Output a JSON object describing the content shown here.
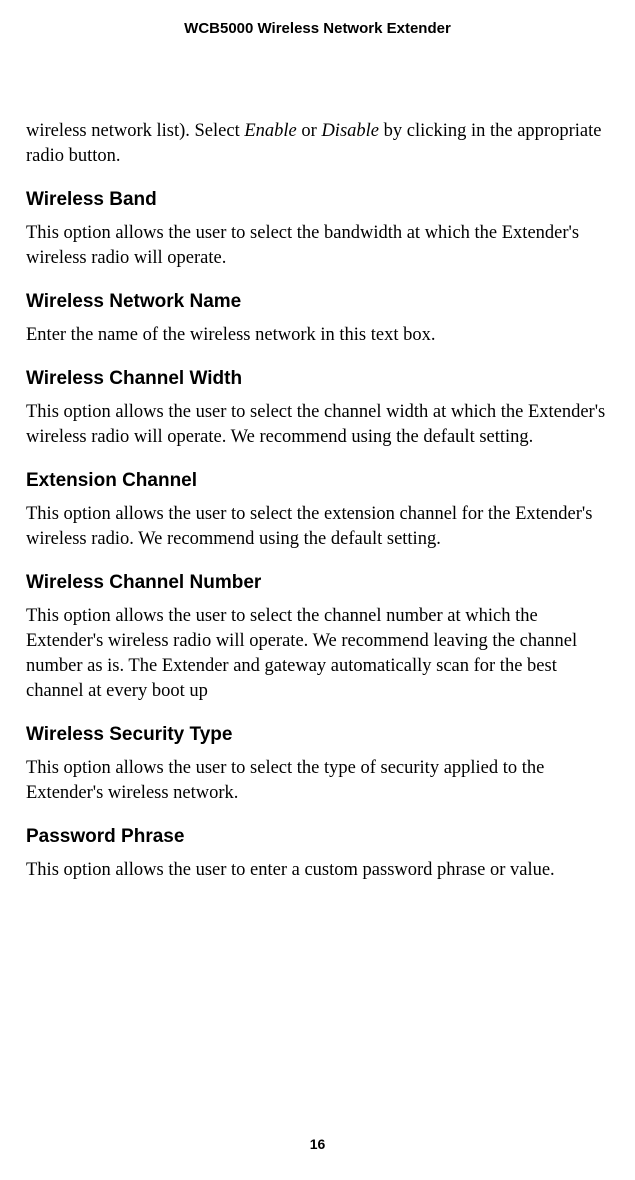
{
  "header": {
    "title": "WCB5000 Wireless Network Extender"
  },
  "intro": {
    "prefix": "wireless network list). Select ",
    "italic1": "Enable",
    "mid": " or ",
    "italic2": "Disable",
    "suffix": " by clicking in the appropriate radio button."
  },
  "sections": [
    {
      "heading": "Wireless Band",
      "body": "This option allows the user to select the bandwidth at which the Extender's wireless radio will operate."
    },
    {
      "heading": "Wireless Network Name",
      "body": "Enter the name of the wireless network in this text box."
    },
    {
      "heading": "Wireless Channel Width",
      "body": "This option allows the user to select the channel width at which the Extender's wireless radio will operate. We recommend using the default setting."
    },
    {
      "heading": "Extension Channel",
      "body": "This option allows the user to select the extension channel for the Extender's wireless radio. We recommend using the default setting."
    },
    {
      "heading": "Wireless Channel Number",
      "body": "This option allows the user to select the channel number at which the Extender's wireless radio will operate. We recommend leaving the channel number as is. The Extender and gateway automatically scan for the best channel at every boot up"
    },
    {
      "heading": "Wireless Security Type",
      "body": "This option allows the user to select the type of security applied to the Extender's wireless network."
    },
    {
      "heading": "Password Phrase",
      "body": "This option allows the user to enter a custom password phrase or value."
    }
  ],
  "pageNumber": "16"
}
